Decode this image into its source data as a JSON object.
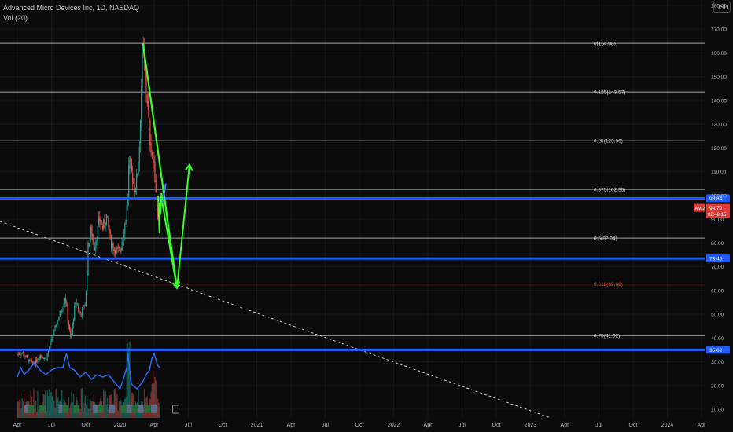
{
  "header": {
    "title": "Advanced Micro Devices Inc, 1D, NASDAQ",
    "volume": "Vol (20)"
  },
  "currency_button": "USD",
  "price_label": {
    "ticker": "AMD",
    "price": "94.79",
    "countdown": "02:48:15"
  },
  "colors": {
    "background": "#0b0b0b",
    "fib_line": "#d9d9d9",
    "fib_0618": "#e0583a",
    "support_blue": "#1e5bff",
    "projection_green": "#3aff2a",
    "candle_up": "#26a69a",
    "candle_down": "#ef5350",
    "vol_ma": "#2f6bff"
  },
  "chart_data": {
    "type": "line",
    "title": "Advanced Micro Devices Inc, 1D, NASDAQ",
    "y_axis": {
      "range": [
        5,
        183
      ],
      "ticks": [
        "180.00",
        "170.00",
        "160.00",
        "150.00",
        "140.00",
        "130.00",
        "120.00",
        "110.00",
        "100.00",
        "90.00",
        "80.00",
        "70.00",
        "60.00",
        "50.00",
        "40.00",
        "30.00",
        "20.00",
        "10.00"
      ]
    },
    "x_axis": {
      "ticks": [
        "Apr",
        "Jul",
        "Oct",
        "2020",
        "Apr",
        "Jul",
        "Oct",
        "2021",
        "Apr",
        "Jul",
        "Oct",
        "2022",
        "Apr",
        "Jul",
        "Oct",
        "2023",
        "Apr",
        "Jul",
        "Oct",
        "2024",
        "Apr"
      ]
    },
    "fib_levels": [
      {
        "label": "0(164.08)",
        "value": 164.08
      },
      {
        "label": "0.125(143.57)",
        "value": 143.57
      },
      {
        "label": "0.25(123.06)",
        "value": 123.06
      },
      {
        "label": "0.375(102.55)",
        "value": 102.55
      },
      {
        "label": "0.5(82.04)",
        "value": 82.04
      },
      {
        "label": "0.618(62.68)",
        "value": 62.68
      },
      {
        "label": "0.75(41.02)",
        "value": 41.02
      }
    ],
    "horizontal_levels": [
      {
        "label": "98.84",
        "value": 98.84
      },
      {
        "label": "73.46",
        "value": 73.46
      },
      {
        "label": "35.02",
        "value": 35.02
      }
    ],
    "current_price": 94.79,
    "price_path": [
      {
        "x": 0.0,
        "y": 33
      },
      {
        "x": 0.5,
        "y": 34
      },
      {
        "x": 1.0,
        "y": 30
      },
      {
        "x": 1.5,
        "y": 29
      },
      {
        "x": 2.0,
        "y": 33
      },
      {
        "x": 2.5,
        "y": 31
      },
      {
        "x": 3.0,
        "y": 39
      },
      {
        "x": 3.5,
        "y": 47
      },
      {
        "x": 4.0,
        "y": 54
      },
      {
        "x": 4.2,
        "y": 58
      },
      {
        "x": 4.4,
        "y": 49
      },
      {
        "x": 4.7,
        "y": 39
      },
      {
        "x": 5.0,
        "y": 52
      },
      {
        "x": 5.2,
        "y": 55
      },
      {
        "x": 5.5,
        "y": 50
      },
      {
        "x": 6.0,
        "y": 55
      },
      {
        "x": 6.2,
        "y": 78
      },
      {
        "x": 6.5,
        "y": 86
      },
      {
        "x": 6.7,
        "y": 78
      },
      {
        "x": 7.0,
        "y": 84
      },
      {
        "x": 7.2,
        "y": 90
      },
      {
        "x": 7.5,
        "y": 86
      },
      {
        "x": 7.8,
        "y": 92
      },
      {
        "x": 8.0,
        "y": 86
      },
      {
        "x": 8.2,
        "y": 80
      },
      {
        "x": 8.5,
        "y": 78
      },
      {
        "x": 8.8,
        "y": 76
      },
      {
        "x": 9.0,
        "y": 77
      },
      {
        "x": 9.3,
        "y": 84
      },
      {
        "x": 9.5,
        "y": 90
      },
      {
        "x": 9.7,
        "y": 100
      },
      {
        "x": 9.8,
        "y": 115
      },
      {
        "x": 10.0,
        "y": 110
      },
      {
        "x": 10.3,
        "y": 103
      },
      {
        "x": 10.5,
        "y": 108
      },
      {
        "x": 10.7,
        "y": 120
      },
      {
        "x": 10.9,
        "y": 150
      },
      {
        "x": 11.0,
        "y": 162
      },
      {
        "x": 11.2,
        "y": 150
      },
      {
        "x": 11.4,
        "y": 140
      },
      {
        "x": 11.6,
        "y": 125
      },
      {
        "x": 11.8,
        "y": 118
      },
      {
        "x": 12.0,
        "y": 112
      },
      {
        "x": 12.2,
        "y": 100
      },
      {
        "x": 12.3,
        "y": 92
      },
      {
        "x": 12.4,
        "y": 95
      },
      {
        "x": 12.5,
        "y": 94.79
      }
    ],
    "projection_path": [
      {
        "x": 12.35,
        "y": 100
      },
      {
        "x": 12.47,
        "y": 84
      },
      {
        "x": 12.5,
        "y": 97
      },
      {
        "x": 12.55,
        "y": 92
      },
      {
        "x": 12.65,
        "y": 101
      },
      {
        "x": 12.75,
        "y": 96
      },
      {
        "x": 14.0,
        "y": 61
      },
      {
        "x": 15.1,
        "y": 113
      }
    ],
    "volume_ma": [
      {
        "x": 0.0,
        "y": 24
      },
      {
        "x": 0.3,
        "y": 28
      },
      {
        "x": 0.6,
        "y": 25
      },
      {
        "x": 1.0,
        "y": 27
      },
      {
        "x": 1.5,
        "y": 30
      },
      {
        "x": 2.0,
        "y": 27
      },
      {
        "x": 2.5,
        "y": 25
      },
      {
        "x": 3.0,
        "y": 27
      },
      {
        "x": 3.5,
        "y": 28
      },
      {
        "x": 4.0,
        "y": 28
      },
      {
        "x": 4.3,
        "y": 34
      },
      {
        "x": 4.6,
        "y": 28
      },
      {
        "x": 5.0,
        "y": 27
      },
      {
        "x": 5.5,
        "y": 24
      },
      {
        "x": 6.0,
        "y": 26
      },
      {
        "x": 6.5,
        "y": 23
      },
      {
        "x": 7.0,
        "y": 25
      },
      {
        "x": 7.5,
        "y": 24
      },
      {
        "x": 8.0,
        "y": 25
      },
      {
        "x": 8.5,
        "y": 22
      },
      {
        "x": 9.0,
        "y": 19
      },
      {
        "x": 9.3,
        "y": 23
      },
      {
        "x": 9.6,
        "y": 28
      },
      {
        "x": 9.7,
        "y": 34
      },
      {
        "x": 9.85,
        "y": 27
      },
      {
        "x": 10.0,
        "y": 21
      },
      {
        "x": 10.5,
        "y": 19
      },
      {
        "x": 11.0,
        "y": 22
      },
      {
        "x": 11.3,
        "y": 25
      },
      {
        "x": 11.6,
        "y": 27
      },
      {
        "x": 11.8,
        "y": 32
      },
      {
        "x": 12.0,
        "y": 34
      },
      {
        "x": 12.3,
        "y": 29
      },
      {
        "x": 12.5,
        "y": 28
      }
    ]
  }
}
